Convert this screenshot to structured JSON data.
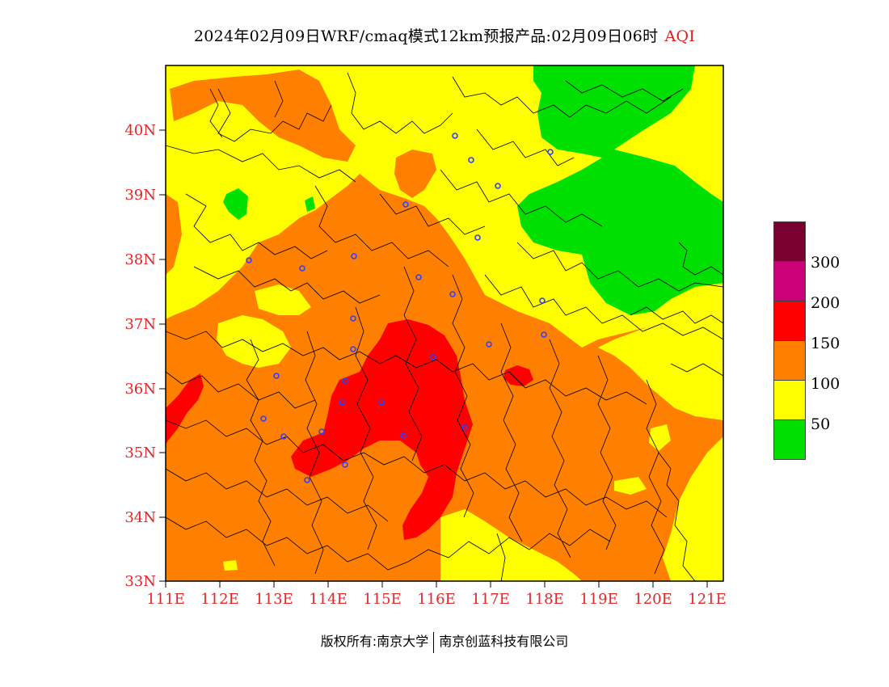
{
  "title": {
    "main": "2024年02月09日WRF/cmaq模式12km预报产品:02月09日06时",
    "product": "AQI"
  },
  "axes": {
    "lat_labels": [
      "40N",
      "39N",
      "38N",
      "37N",
      "36N",
      "35N",
      "34N",
      "33N"
    ],
    "lon_labels": [
      "111E",
      "112E",
      "113E",
      "114E",
      "115E",
      "116E",
      "117E",
      "118E",
      "119E",
      "120E",
      "121E"
    ]
  },
  "legend": {
    "colors": [
      "#7a0030",
      "#cc0077",
      "#ff0000",
      "#ff8000",
      "#ffff00",
      "#00e000"
    ],
    "labels": [
      "300",
      "200",
      "150",
      "100",
      "50"
    ]
  },
  "colors": {
    "good": "#00e000",
    "moderate": "#ffff00",
    "sensitive": "#ff8000",
    "unhealthy": "#ff0000",
    "very_unhealthy": "#cc0077",
    "hazardous": "#7a0030",
    "city_marker": "#3040ff",
    "axis_label": "#e02828"
  },
  "copyright": {
    "left": "版权所有:南京大学",
    "right": "南京创蓝科技有限公司"
  }
}
